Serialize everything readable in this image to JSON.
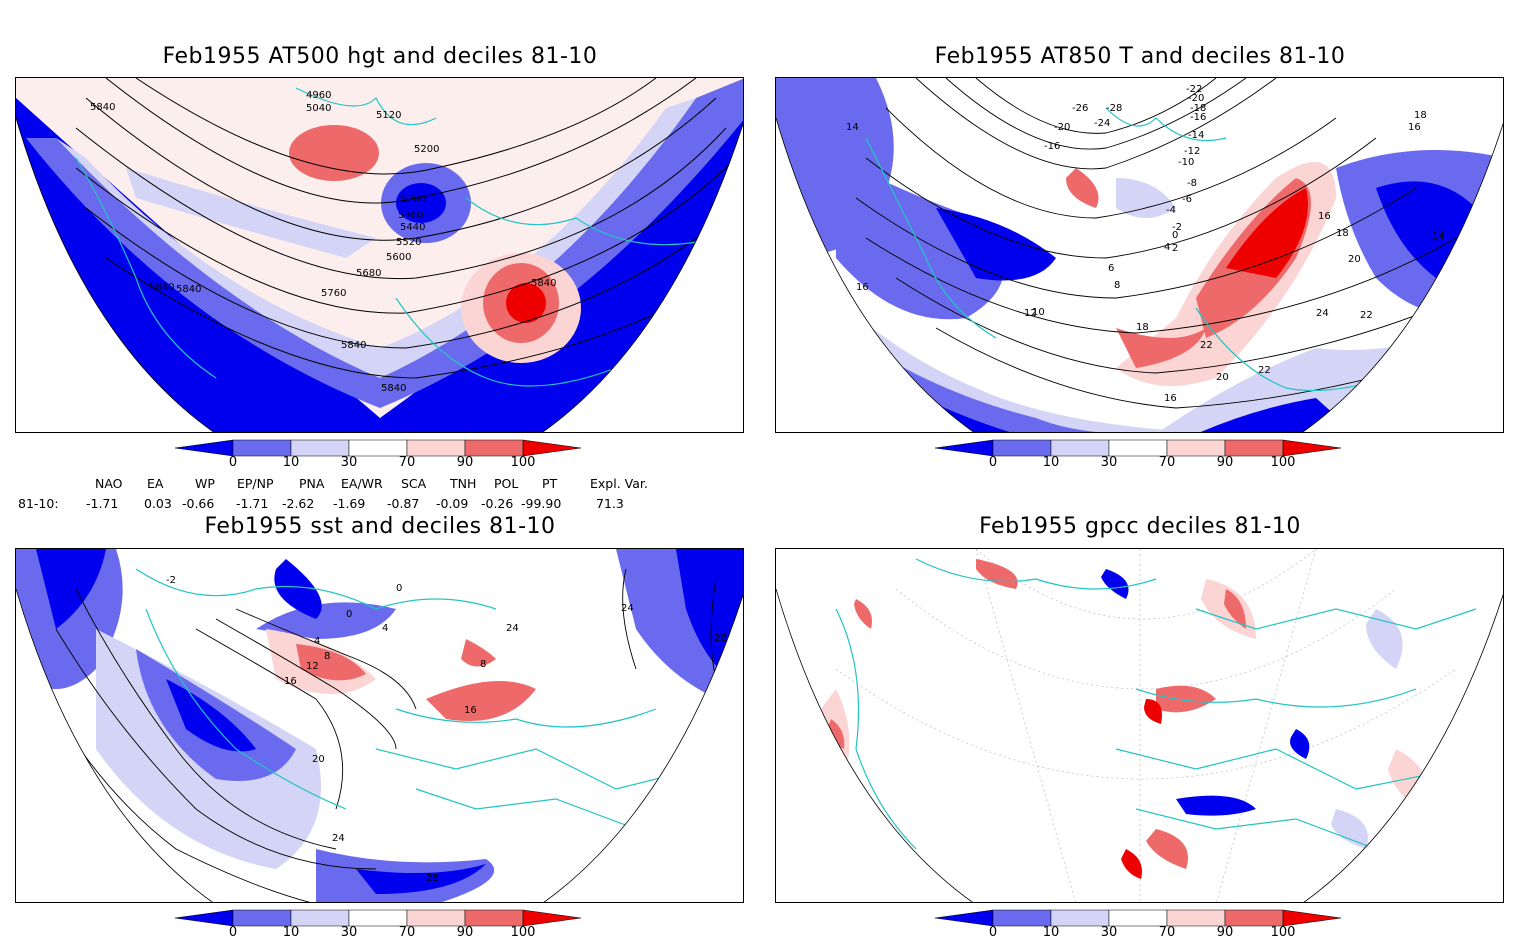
{
  "panels": {
    "top_left": {
      "title": "Feb1955 AT500 hgt and deciles 81-10",
      "contour_labels": [
        "4960",
        "5040",
        "5120",
        "5200",
        "5280",
        "5360",
        "5440",
        "5520",
        "5600",
        "5680",
        "5760",
        "5840",
        "5840",
        "5840",
        "5840",
        "5840",
        "5840"
      ]
    },
    "top_right": {
      "title": "Feb1955 AT850 T and deciles 81-10",
      "contour_labels": [
        "-28",
        "-26",
        "-24",
        "-22",
        "-20",
        "-20",
        "-18",
        "-16",
        "-16",
        "-14",
        "-12",
        "-10",
        "-8",
        "-6",
        "-4",
        "-2",
        "0",
        "2",
        "4",
        "6",
        "8",
        "10",
        "12",
        "14",
        "14",
        "16",
        "16",
        "16",
        "16",
        "18",
        "18",
        "18",
        "20",
        "20",
        "22",
        "22",
        "22",
        "24"
      ]
    },
    "bottom_left": {
      "title": "Feb1955 sst and deciles 81-10",
      "contour_labels": [
        "0",
        "4",
        "8",
        "12",
        "16",
        "20",
        "24",
        "24",
        "28",
        "28",
        "-2",
        "0",
        "4",
        "16",
        "8",
        "24"
      ]
    },
    "bottom_right": {
      "title": "Feb1955 gpcc deciles 81-10"
    }
  },
  "colorbar": {
    "ticks": [
      "0",
      "10",
      "30",
      "70",
      "90",
      "100"
    ],
    "colors": [
      "#0000ee",
      "#6a6aee",
      "#d4d4f6",
      "#ffffff",
      "#fbd4d4",
      "#ee6a6a",
      "#ee0000"
    ]
  },
  "indices": {
    "headers": [
      "NAO",
      "EA",
      "WP",
      "EP/NP",
      "PNA",
      "EA/WR",
      "SCA",
      "TNH",
      "POL",
      "PT",
      "Expl. Var."
    ],
    "row_label": "81-10:",
    "values": [
      "-1.71",
      "0.03",
      "-0.66",
      "-1.71",
      "-2.62",
      "-1.69",
      "-0.87",
      "-0.09",
      "-0.26",
      "-99.90",
      "71.3"
    ]
  },
  "colors": {
    "coast": "#22c4c4",
    "contour": "#000000",
    "strong_low": "#0000ee",
    "moderate_low": "#6a6aee",
    "weak_low": "#d4d4f6",
    "weak_high": "#fbd4d4",
    "moderate_high": "#ee6a6a",
    "strong_high": "#ee0000"
  }
}
